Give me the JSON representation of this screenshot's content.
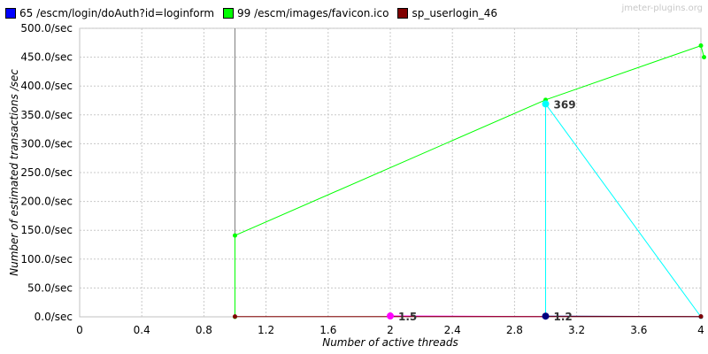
{
  "watermark": "jmeter-plugins.org",
  "chart_data": {
    "type": "line",
    "title": "",
    "xlabel": "Number of active threads",
    "ylabel": "Number of estimated transactions /sec",
    "xlim": [
      0,
      4
    ],
    "ylim": [
      0,
      500
    ],
    "x_ticks": [
      "0",
      "0.4",
      "0.8",
      "1.2",
      "1.6",
      "2",
      "2.4",
      "2.8",
      "3.2",
      "3.6",
      "4"
    ],
    "x_tick_values": [
      0,
      0.4,
      0.8,
      1.2,
      1.6,
      2,
      2.4,
      2.8,
      3.2,
      3.6,
      4
    ],
    "y_ticks": [
      "0.0/sec",
      "50.0/sec",
      "100.0/sec",
      "150.0/sec",
      "200.0/sec",
      "250.0/sec",
      "300.0/sec",
      "350.0/sec",
      "400.0/sec",
      "450.0/sec",
      "500.0/sec"
    ],
    "y_tick_values": [
      0,
      50,
      100,
      150,
      200,
      250,
      300,
      350,
      400,
      450,
      500
    ],
    "grid": true,
    "legend_position": "top-left",
    "legend": [
      {
        "name": "65 /escm/login/doAuth?id=loginform",
        "color": "#0000ff"
      },
      {
        "name": "99 /escm/images/favicon.ico",
        "color": "#00ff00"
      },
      {
        "name": "sp_userlogin_46",
        "color": "#800000"
      }
    ],
    "series": [
      {
        "name": "sp_userlogin_46",
        "color": "#7f7f7f",
        "points": [
          [
            1,
            0
          ],
          [
            1,
            500
          ]
        ],
        "markers": false
      },
      {
        "name": "99 /escm/images/favicon.ico",
        "color": "#00ff00",
        "points": [
          [
            1,
            0
          ],
          [
            1,
            141
          ],
          [
            3,
            376
          ],
          [
            4,
            470
          ],
          [
            4.02,
            450
          ]
        ],
        "markers": true
      },
      {
        "name": "",
        "color": "#00ffff",
        "points": [
          [
            3,
            0
          ],
          [
            3,
            369
          ],
          [
            4,
            0
          ]
        ],
        "markers": true
      },
      {
        "name": "",
        "color": "#ff00ff",
        "points": [
          [
            2,
            1.5
          ],
          [
            3,
            0.5
          ]
        ],
        "markers": true
      },
      {
        "name": "65 /escm/login/doAuth?id=loginform",
        "color": "#000080",
        "points": [
          [
            3,
            1.2
          ],
          [
            4,
            0.5
          ]
        ],
        "markers": true
      },
      {
        "name": "sp_userlogin_46",
        "color": "#800000",
        "points": [
          [
            1,
            0.5
          ],
          [
            4,
            0.5
          ]
        ],
        "markers": true
      }
    ],
    "annotations": [
      {
        "x": 3,
        "y": 369,
        "text": "369",
        "color": "#00ffff"
      },
      {
        "x": 2,
        "y": 1.5,
        "text": "1.5",
        "color": "#ff00ff"
      },
      {
        "x": 3,
        "y": 1.2,
        "text": "1.2",
        "color": "#000080"
      }
    ]
  }
}
